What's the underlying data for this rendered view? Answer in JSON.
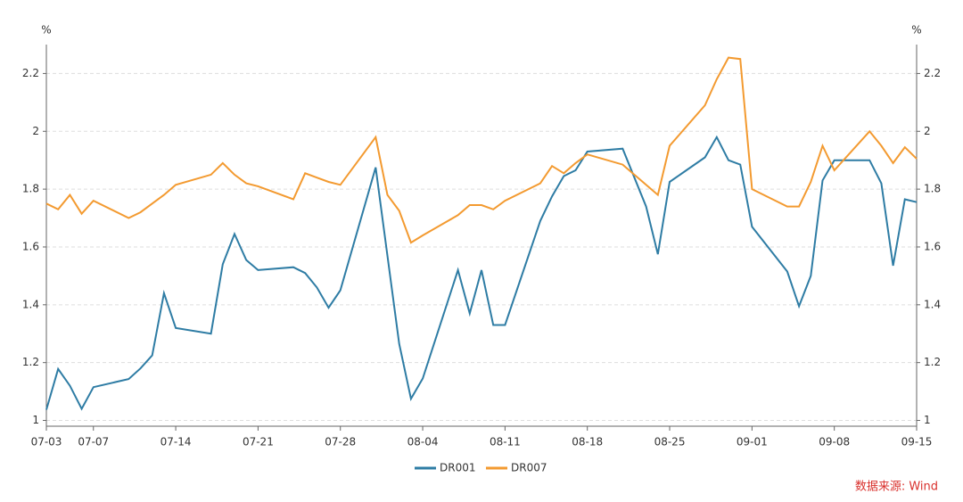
{
  "chart_data": {
    "type": "line",
    "y_unit": "%",
    "y2_unit": "%",
    "source": "数据来源: Wind",
    "x": [
      "07-03",
      "07-04",
      "07-05",
      "07-06",
      "07-07",
      "07-10",
      "07-11",
      "07-12",
      "07-13",
      "07-14",
      "07-17",
      "07-18",
      "07-19",
      "07-20",
      "07-21",
      "07-24",
      "07-25",
      "07-26",
      "07-27",
      "07-28",
      "07-31",
      "08-01",
      "08-02",
      "08-03",
      "08-04",
      "08-07",
      "08-08",
      "08-09",
      "08-10",
      "08-11",
      "08-14",
      "08-15",
      "08-16",
      "08-17",
      "08-18",
      "08-21",
      "08-23",
      "08-24",
      "08-25",
      "08-28",
      "08-29",
      "08-30",
      "08-31",
      "09-01",
      "09-04",
      "09-05",
      "09-06",
      "09-07",
      "09-08",
      "09-11",
      "09-12",
      "09-13",
      "09-14",
      "09-15"
    ],
    "series": [
      {
        "name": "DR001",
        "color": "#2e7ca4",
        "values": [
          1.037,
          1.178,
          1.12,
          1.04,
          1.115,
          1.143,
          1.18,
          1.225,
          1.44,
          1.32,
          1.3,
          1.54,
          1.645,
          1.555,
          1.52,
          1.53,
          1.51,
          1.46,
          1.39,
          1.45,
          1.875,
          1.57,
          1.265,
          1.075,
          1.145,
          1.52,
          1.37,
          1.52,
          1.33,
          1.33,
          1.69,
          1.775,
          1.845,
          1.865,
          1.93,
          1.94,
          1.74,
          1.575,
          1.825,
          1.91,
          1.98,
          1.9,
          1.885,
          1.67,
          1.515,
          1.395,
          1.5,
          1.83,
          1.9,
          1.9,
          1.82,
          1.535,
          1.765,
          1.755
        ]
      },
      {
        "name": "DR007",
        "color": "#f39a30",
        "values": [
          1.75,
          1.73,
          1.78,
          1.715,
          1.76,
          1.7,
          1.72,
          1.75,
          1.78,
          1.815,
          1.85,
          1.89,
          1.85,
          1.82,
          1.81,
          1.765,
          1.855,
          1.84,
          1.825,
          1.815,
          1.98,
          1.78,
          1.725,
          1.615,
          1.64,
          1.71,
          1.745,
          1.745,
          1.73,
          1.76,
          1.82,
          1.88,
          1.855,
          1.89,
          1.92,
          1.885,
          1.815,
          1.78,
          1.95,
          2.09,
          2.18,
          2.255,
          2.25,
          1.8,
          1.74,
          1.74,
          1.825,
          1.95,
          1.865,
          2.0,
          1.95,
          1.89,
          1.945,
          1.905
        ]
      }
    ],
    "xlim": [
      "07-03",
      "09-15"
    ],
    "xticks": [
      "07-03",
      "07-07",
      "07-14",
      "07-21",
      "07-28",
      "08-04",
      "08-11",
      "08-18",
      "08-25",
      "09-01",
      "09-08",
      "09-15"
    ],
    "ylim": [
      0.98,
      2.3
    ],
    "yticks": [
      1,
      1.2,
      1.4,
      1.6,
      1.8,
      2,
      2.2
    ],
    "y2lim": [
      0.98,
      2.3
    ],
    "y2ticks": [
      1,
      1.2,
      1.4,
      1.6,
      1.8,
      2,
      2.2
    ],
    "grid": true
  }
}
